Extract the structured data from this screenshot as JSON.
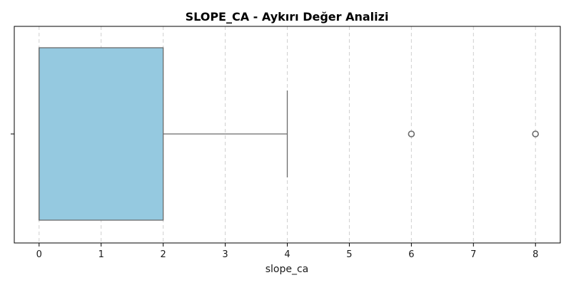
{
  "chart_data": {
    "type": "box",
    "title": "SLOPE_CA - Aykırı Değer Analizi",
    "xlabel": "slope_ca",
    "ylabel": "",
    "orientation": "horizontal",
    "xlim": [
      -0.4,
      8.4
    ],
    "xticks": [
      0,
      1,
      2,
      3,
      4,
      5,
      6,
      7,
      8
    ],
    "grid": "x-dashed",
    "box": {
      "min": 0,
      "q1": 0,
      "median": 0,
      "q3": 2,
      "max": 4,
      "outliers": [
        6,
        8
      ]
    },
    "colors": {
      "box_fill": "#95c9e0",
      "line": "#6b6b6b",
      "grid": "#cfcfcf"
    }
  }
}
